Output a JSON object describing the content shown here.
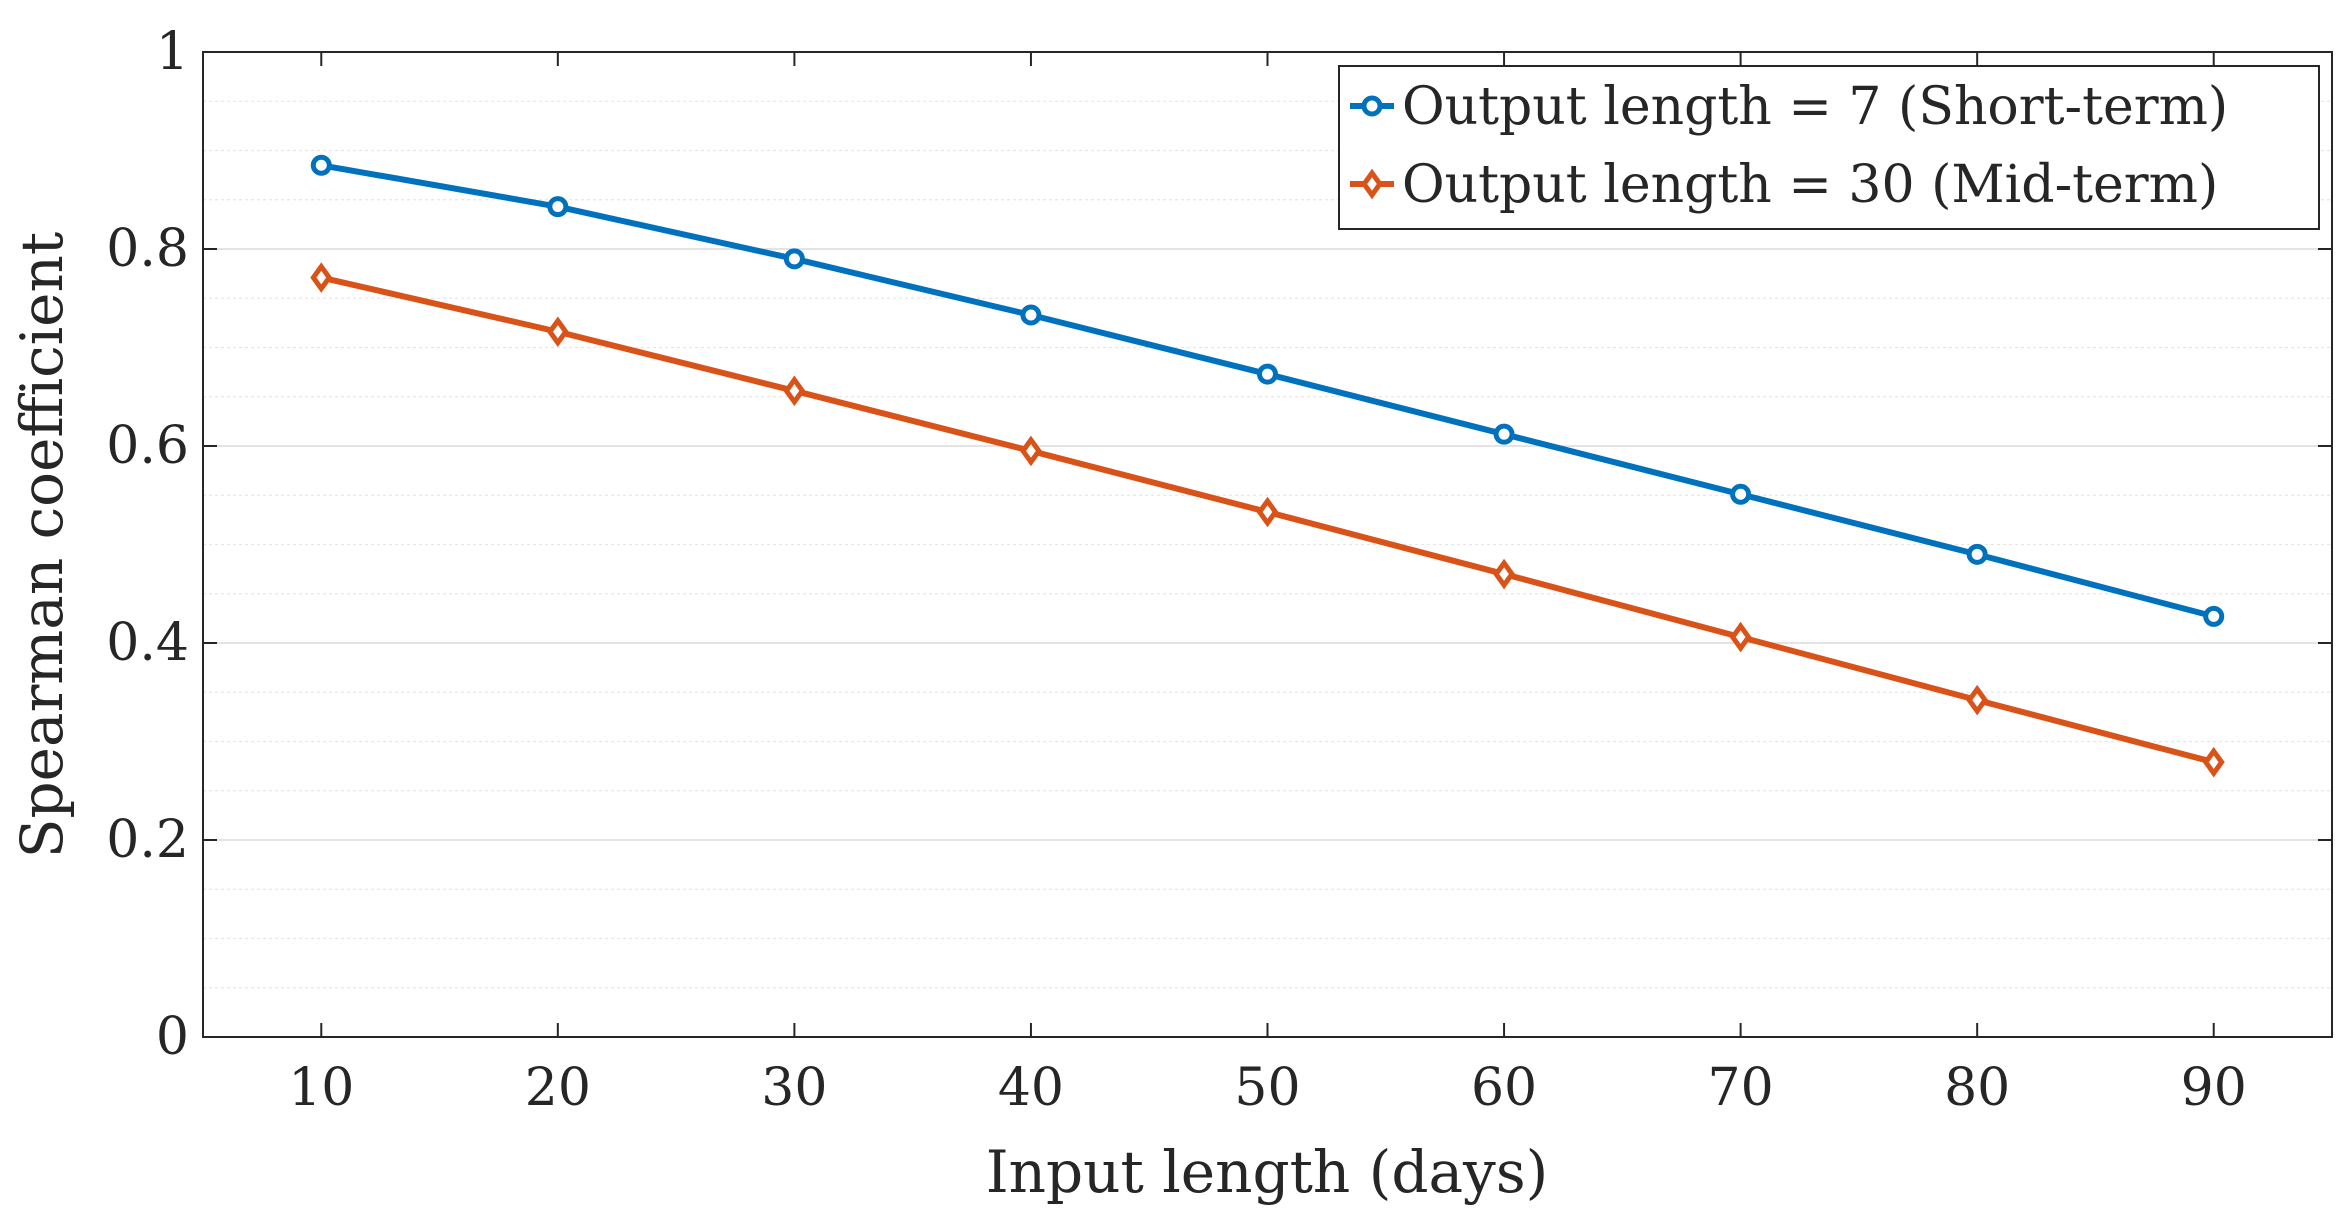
{
  "chart_data": {
    "type": "line",
    "title": "",
    "xlabel": "Input length (days)",
    "ylabel": "Spearman coefficient",
    "x": [
      10,
      20,
      30,
      40,
      50,
      60,
      70,
      80,
      90
    ],
    "xlim": [
      5,
      95
    ],
    "ylim": [
      0,
      1
    ],
    "xticks": [
      10,
      20,
      30,
      40,
      50,
      60,
      70,
      80,
      90
    ],
    "xtick_labels": [
      "10",
      "20",
      "30",
      "40",
      "50",
      "60",
      "70",
      "80",
      "90"
    ],
    "yticks": [
      0,
      0.2,
      0.4,
      0.6,
      0.8,
      1
    ],
    "ytick_labels": [
      "0",
      "0.2",
      "0.4",
      "0.6",
      "0.8",
      "1"
    ],
    "grid": true,
    "minor_grid": true,
    "legend_position": "top-right",
    "series": [
      {
        "name": "Output length = 7 (Short-term)",
        "color": "#0072BD",
        "marker": "circle",
        "values": [
          0.885,
          0.843,
          0.79,
          0.733,
          0.673,
          0.612,
          0.551,
          0.49,
          0.427
        ]
      },
      {
        "name": "Output length = 30 (Mid-term)",
        "color": "#D95319",
        "marker": "diamond",
        "values": [
          0.771,
          0.716,
          0.656,
          0.595,
          0.533,
          0.47,
          0.406,
          0.342,
          0.279
        ]
      }
    ]
  }
}
